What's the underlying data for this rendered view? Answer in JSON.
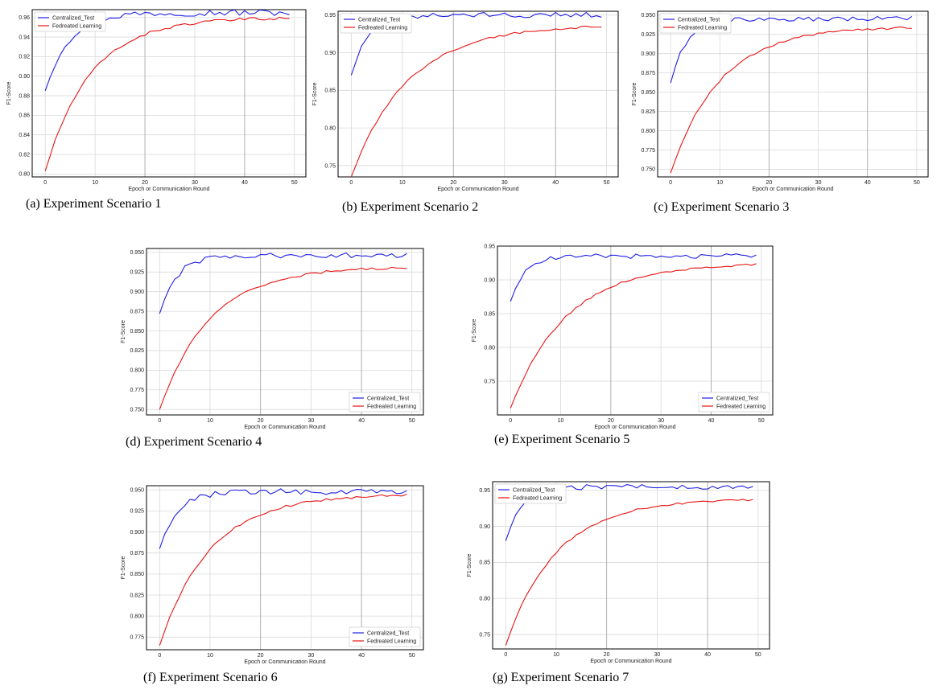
{
  "colors": {
    "centralized": "#1f1fe6",
    "federated": "#e81414"
  },
  "captions": [
    "(a) Experiment Scenario 1",
    "(b) Experiment Scenario 2",
    "(c) Experiment Scenario 3",
    "(d) Experiment Scenario 4",
    "(e) Experiment Scenario 5",
    "(f) Experiment Scenario 6",
    "(g) Experiment Scenario 7"
  ],
  "chart_data": [
    {
      "type": "line",
      "ylabel": "F1-Score",
      "xlabel": "Epoch or Communication Round",
      "xlim": [
        0,
        50
      ],
      "ylim": [
        0.797,
        0.968
      ],
      "yticks": [
        0.8,
        0.82,
        0.84,
        0.86,
        0.88,
        0.9,
        0.92,
        0.94,
        0.96
      ],
      "ytick_labels": [
        "0.80",
        "0.82",
        "0.84",
        "0.86",
        "0.88",
        "0.90",
        "0.92",
        "0.94",
        "0.96"
      ],
      "xticks": [
        0,
        10,
        20,
        30,
        40,
        50
      ],
      "legend": "top-left",
      "series": [
        {
          "name": "Centralized_Test",
          "start": 0.885,
          "end": 0.965,
          "k": 0.22
        },
        {
          "name": "Fedreated Learning",
          "start": 0.803,
          "end": 0.96,
          "k": 0.11
        }
      ]
    },
    {
      "type": "line",
      "ylabel": "F1-Score",
      "xlabel": "Epoch or Communication Round",
      "xlim": [
        0,
        50
      ],
      "ylim": [
        0.735,
        0.955
      ],
      "yticks": [
        0.75,
        0.8,
        0.85,
        0.9,
        0.95
      ],
      "ytick_labels": [
        "0.75",
        "0.80",
        "0.85",
        "0.90",
        "0.95"
      ],
      "xticks": [
        0,
        10,
        20,
        30,
        40,
        50
      ],
      "legend": "top-left",
      "series": [
        {
          "name": "Centralized_Test",
          "start": 0.87,
          "end": 0.95,
          "k": 0.3
        },
        {
          "name": "Fedreated Learning",
          "start": 0.735,
          "end": 0.937,
          "k": 0.09
        }
      ]
    },
    {
      "type": "line",
      "ylabel": "F1-Score",
      "xlabel": "Epoch or Communication Round",
      "xlim": [
        0,
        50
      ],
      "ylim": [
        0.74,
        0.955
      ],
      "yticks": [
        0.75,
        0.775,
        0.8,
        0.825,
        0.85,
        0.875,
        0.9,
        0.925,
        0.95
      ],
      "ytick_labels": [
        "0.750",
        "0.775",
        "0.800",
        "0.825",
        "0.850",
        "0.875",
        "0.900",
        "0.925",
        "0.950"
      ],
      "xticks": [
        0,
        10,
        20,
        30,
        40,
        50
      ],
      "legend": "top-left",
      "series": [
        {
          "name": "Centralized_Test",
          "start": 0.862,
          "end": 0.945,
          "k": 0.32
        },
        {
          "name": "Fedreated Learning",
          "start": 0.745,
          "end": 0.935,
          "k": 0.1
        }
      ]
    },
    {
      "type": "line",
      "ylabel": "F1-Score",
      "xlabel": "Epoch or Communication Round",
      "xlim": [
        0,
        50
      ],
      "ylim": [
        0.743,
        0.955
      ],
      "yticks": [
        0.75,
        0.775,
        0.8,
        0.825,
        0.85,
        0.875,
        0.9,
        0.925,
        0.95
      ],
      "ytick_labels": [
        "0.750",
        "0.775",
        "0.800",
        "0.825",
        "0.850",
        "0.875",
        "0.900",
        "0.925",
        "0.950"
      ],
      "xticks": [
        0,
        10,
        20,
        30,
        40,
        50
      ],
      "legend": "bottom-right",
      "series": [
        {
          "name": "Centralized_Test",
          "start": 0.872,
          "end": 0.946,
          "k": 0.3
        },
        {
          "name": "Fedreated Learning",
          "start": 0.75,
          "end": 0.932,
          "k": 0.1
        }
      ]
    },
    {
      "type": "line",
      "ylabel": "F1-Score",
      "xlabel": "Epoch or Communication Round",
      "xlim": [
        0,
        50
      ],
      "ylim": [
        0.7,
        0.95
      ],
      "yticks": [
        0.75,
        0.8,
        0.85,
        0.9,
        0.95
      ],
      "ytick_labels": [
        "0.75",
        "0.80",
        "0.85",
        "0.90",
        "0.95"
      ],
      "xticks": [
        0,
        10,
        20,
        30,
        40,
        50
      ],
      "legend": "bottom-right",
      "series": [
        {
          "name": "Centralized_Test",
          "start": 0.868,
          "end": 0.935,
          "k": 0.35
        },
        {
          "name": "Fedreated Learning",
          "start": 0.71,
          "end": 0.925,
          "k": 0.09
        }
      ]
    },
    {
      "type": "line",
      "ylabel": "F1-Score",
      "xlabel": "Epoch or Communication Round",
      "xlim": [
        0,
        50
      ],
      "ylim": [
        0.76,
        0.955
      ],
      "yticks": [
        0.775,
        0.8,
        0.825,
        0.85,
        0.875,
        0.9,
        0.925,
        0.95
      ],
      "ytick_labels": [
        "0.775",
        "0.800",
        "0.825",
        "0.850",
        "0.875",
        "0.900",
        "0.925",
        "0.950"
      ],
      "xticks": [
        0,
        10,
        20,
        30,
        40,
        50
      ],
      "legend": "bottom-right",
      "series": [
        {
          "name": "Centralized_Test",
          "start": 0.88,
          "end": 0.948,
          "k": 0.3
        },
        {
          "name": "Fedreated Learning",
          "start": 0.765,
          "end": 0.945,
          "k": 0.1
        }
      ]
    },
    {
      "type": "line",
      "ylabel": "F1-Score",
      "xlabel": "Epoch or Communication Round",
      "xlim": [
        0,
        50
      ],
      "ylim": [
        0.73,
        0.962
      ],
      "yticks": [
        0.75,
        0.8,
        0.85,
        0.9,
        0.95
      ],
      "ytick_labels": [
        "0.75",
        "0.80",
        "0.85",
        "0.90",
        "0.95"
      ],
      "xticks": [
        0,
        10,
        20,
        30,
        40,
        50
      ],
      "legend": "top-left",
      "series": [
        {
          "name": "Centralized_Test",
          "start": 0.88,
          "end": 0.955,
          "k": 0.3
        },
        {
          "name": "Fedreated Learning",
          "start": 0.735,
          "end": 0.938,
          "k": 0.1
        }
      ]
    }
  ]
}
